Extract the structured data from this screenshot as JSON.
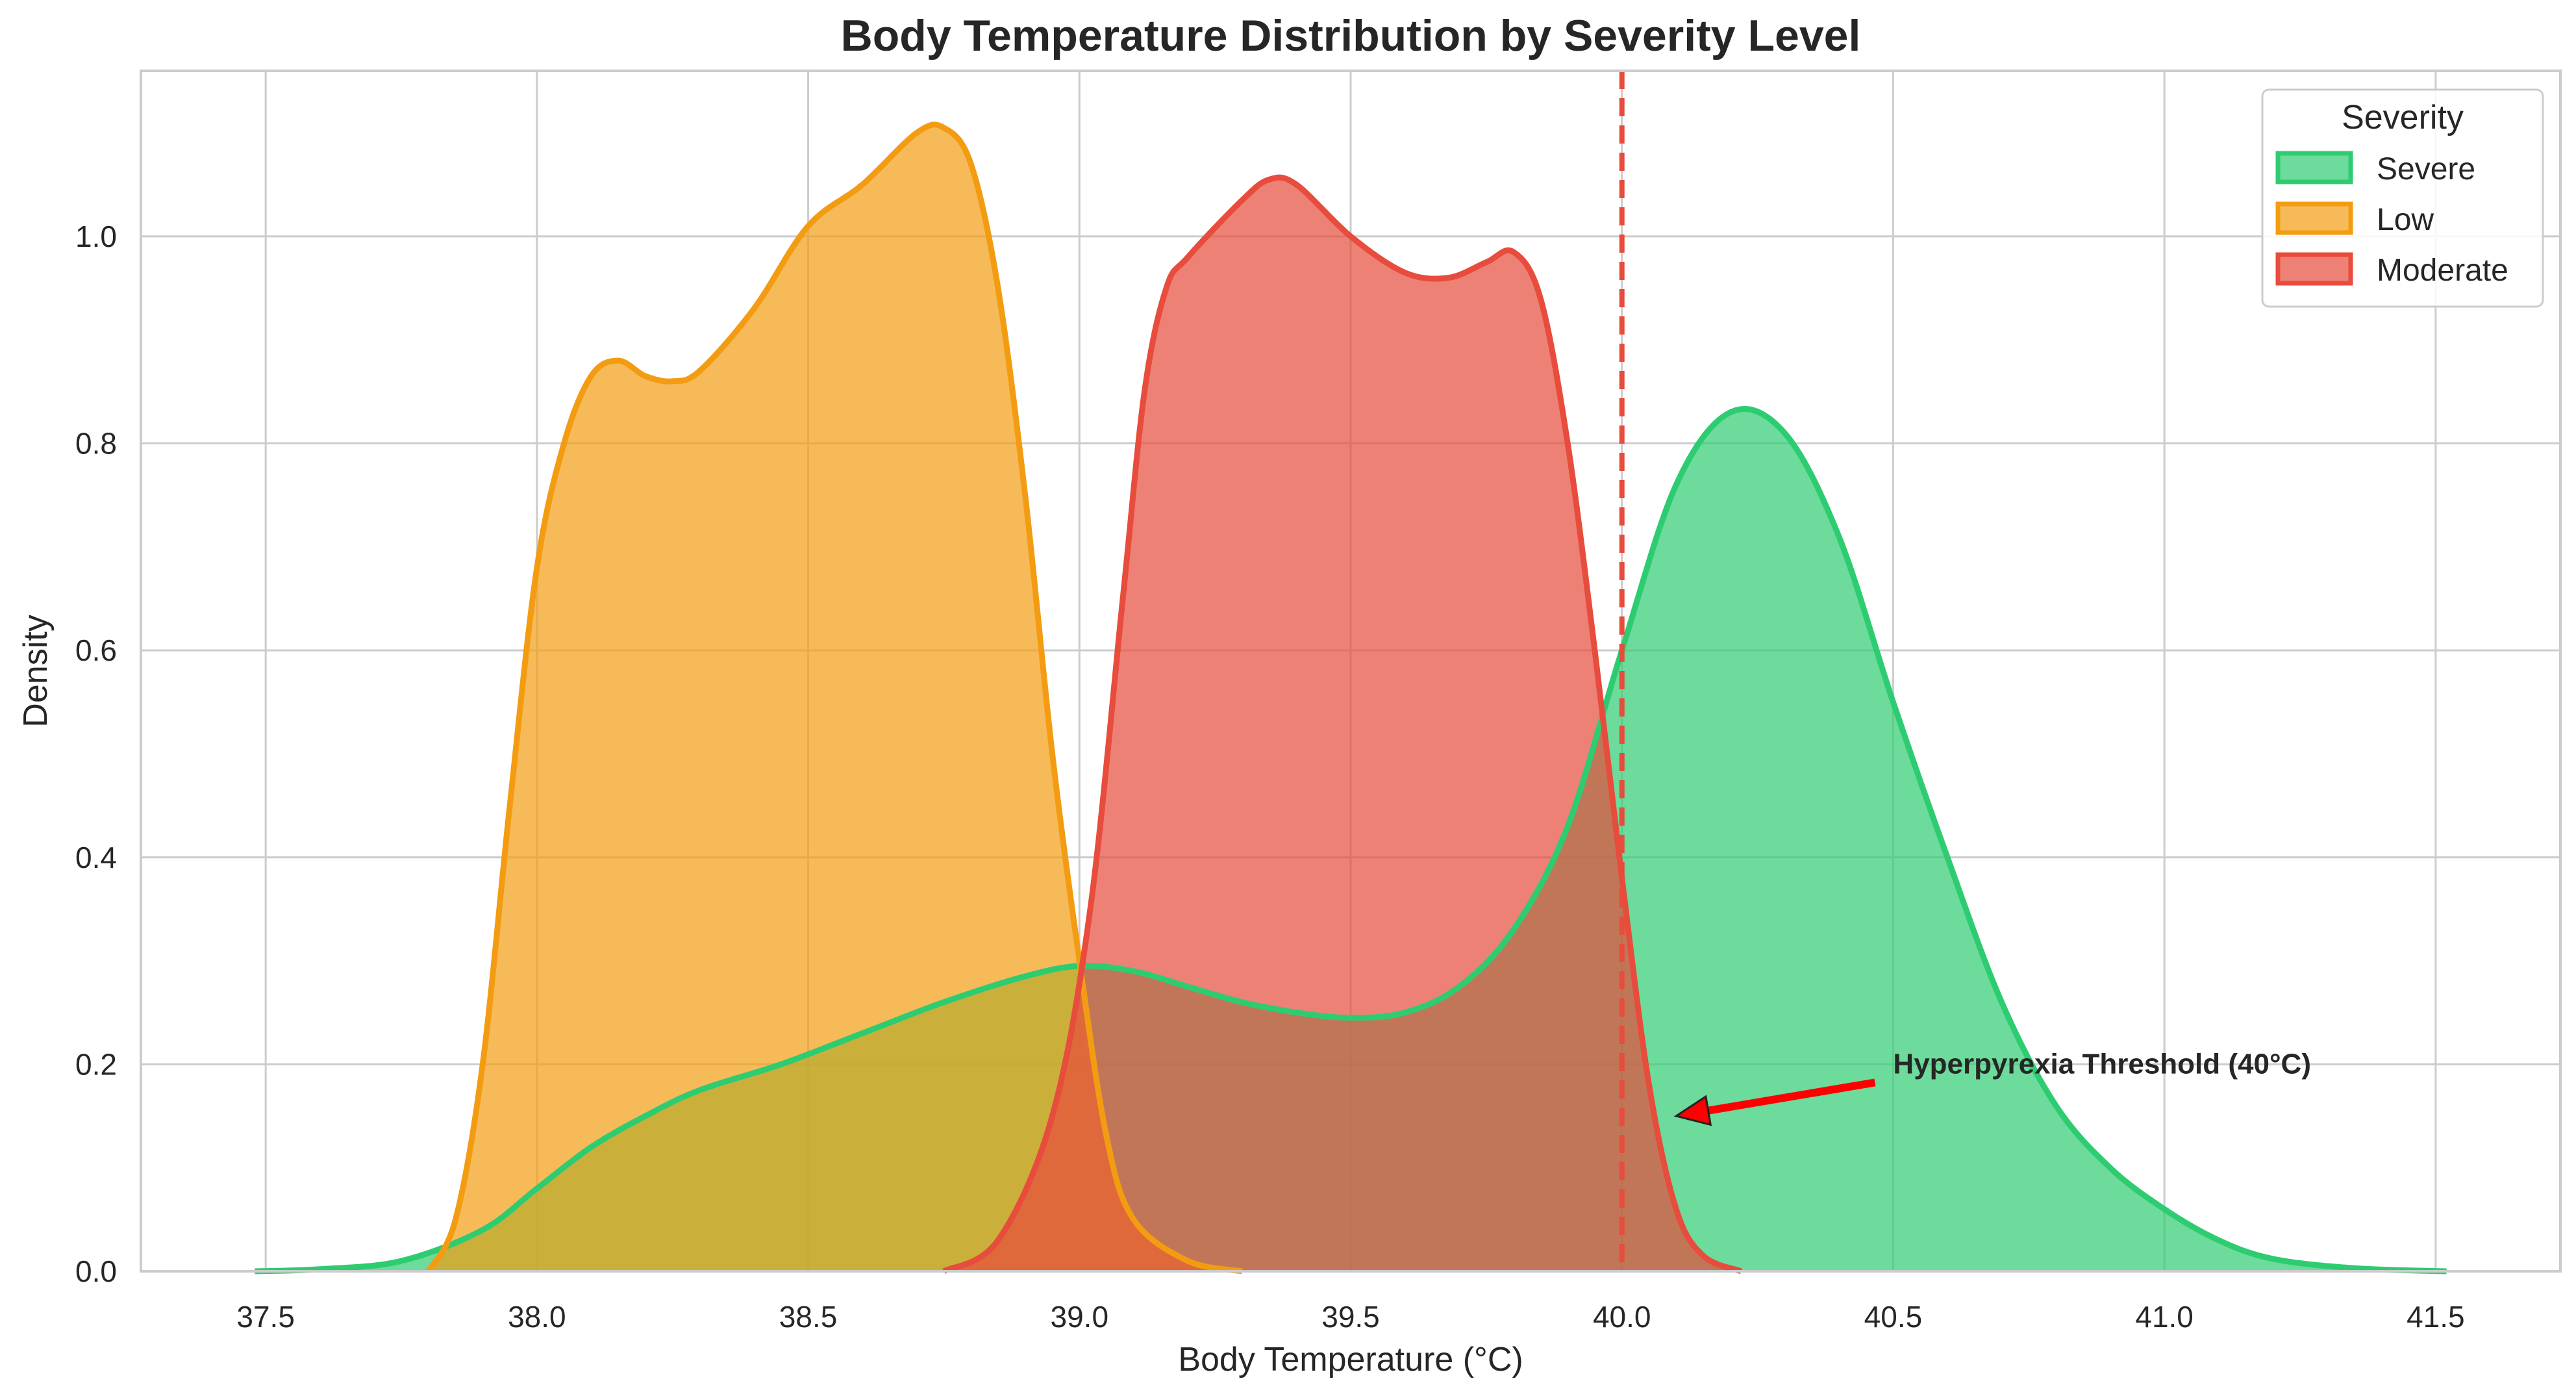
{
  "chart_data": {
    "type": "area",
    "title": "Body Temperature Distribution by Severity Level",
    "xlabel": "Body Temperature (°C)",
    "ylabel": "Density",
    "xlim": [
      37.27,
      41.73
    ],
    "ylim": [
      0,
      1.16
    ],
    "xticks": [
      37.5,
      38.0,
      38.5,
      39.0,
      39.5,
      40.0,
      40.5,
      41.0,
      41.5
    ],
    "xtick_labels": [
      "37.5",
      "38.0",
      "38.5",
      "39.0",
      "39.5",
      "40.0",
      "40.5",
      "41.0",
      "41.5"
    ],
    "yticks": [
      0.0,
      0.2,
      0.4,
      0.6,
      0.8,
      1.0
    ],
    "ytick_labels": [
      "0.0",
      "0.2",
      "0.4",
      "0.6",
      "0.8",
      "1.0"
    ],
    "grid": true,
    "legend": {
      "title": "Severity",
      "placement": "top-right"
    },
    "series": [
      {
        "name": "Severe",
        "color": "#2ecc71",
        "points": [
          [
            37.48,
            0.0
          ],
          [
            37.6,
            0.002
          ],
          [
            37.75,
            0.01
          ],
          [
            37.9,
            0.04
          ],
          [
            38.0,
            0.08
          ],
          [
            38.1,
            0.12
          ],
          [
            38.2,
            0.15
          ],
          [
            38.3,
            0.175
          ],
          [
            38.45,
            0.2
          ],
          [
            38.6,
            0.23
          ],
          [
            38.75,
            0.26
          ],
          [
            38.9,
            0.285
          ],
          [
            39.0,
            0.295
          ],
          [
            39.1,
            0.29
          ],
          [
            39.2,
            0.275
          ],
          [
            39.3,
            0.26
          ],
          [
            39.4,
            0.25
          ],
          [
            39.5,
            0.245
          ],
          [
            39.6,
            0.25
          ],
          [
            39.7,
            0.275
          ],
          [
            39.8,
            0.33
          ],
          [
            39.9,
            0.43
          ],
          [
            40.0,
            0.6
          ],
          [
            40.1,
            0.76
          ],
          [
            40.2,
            0.83
          ],
          [
            40.3,
            0.81
          ],
          [
            40.4,
            0.71
          ],
          [
            40.5,
            0.55
          ],
          [
            40.6,
            0.4
          ],
          [
            40.7,
            0.26
          ],
          [
            40.8,
            0.16
          ],
          [
            40.9,
            0.1
          ],
          [
            41.0,
            0.06
          ],
          [
            41.1,
            0.03
          ],
          [
            41.2,
            0.012
          ],
          [
            41.35,
            0.003
          ],
          [
            41.52,
            0.0
          ]
        ]
      },
      {
        "name": "Low",
        "color": "#f39c12",
        "points": [
          [
            37.8,
            0.0
          ],
          [
            37.85,
            0.05
          ],
          [
            37.9,
            0.2
          ],
          [
            37.95,
            0.45
          ],
          [
            38.0,
            0.68
          ],
          [
            38.05,
            0.8
          ],
          [
            38.1,
            0.865
          ],
          [
            38.15,
            0.88
          ],
          [
            38.2,
            0.865
          ],
          [
            38.25,
            0.86
          ],
          [
            38.3,
            0.87
          ],
          [
            38.4,
            0.93
          ],
          [
            38.5,
            1.01
          ],
          [
            38.6,
            1.05
          ],
          [
            38.7,
            1.1
          ],
          [
            38.75,
            1.105
          ],
          [
            38.8,
            1.07
          ],
          [
            38.85,
            0.95
          ],
          [
            38.9,
            0.75
          ],
          [
            38.95,
            0.5
          ],
          [
            39.0,
            0.3
          ],
          [
            39.05,
            0.13
          ],
          [
            39.1,
            0.05
          ],
          [
            39.2,
            0.01
          ],
          [
            39.3,
            0.0
          ]
        ]
      },
      {
        "name": "Moderate",
        "color": "#e74c3c",
        "points": [
          [
            38.75,
            0.0
          ],
          [
            38.85,
            0.03
          ],
          [
            38.95,
            0.15
          ],
          [
            39.02,
            0.35
          ],
          [
            39.08,
            0.65
          ],
          [
            39.12,
            0.85
          ],
          [
            39.16,
            0.95
          ],
          [
            39.2,
            0.98
          ],
          [
            39.3,
            1.035
          ],
          [
            39.35,
            1.055
          ],
          [
            39.4,
            1.05
          ],
          [
            39.5,
            1.0
          ],
          [
            39.6,
            0.965
          ],
          [
            39.68,
            0.96
          ],
          [
            39.75,
            0.975
          ],
          [
            39.8,
            0.985
          ],
          [
            39.85,
            0.94
          ],
          [
            39.9,
            0.8
          ],
          [
            39.95,
            0.6
          ],
          [
            40.0,
            0.38
          ],
          [
            40.05,
            0.18
          ],
          [
            40.1,
            0.06
          ],
          [
            40.15,
            0.015
          ],
          [
            40.22,
            0.0
          ]
        ]
      }
    ],
    "threshold": {
      "x": 40.0,
      "color": "#e74c3c",
      "style": "dashed"
    },
    "annotation": {
      "text": "Hyperpyrexia Threshold (40°C)",
      "text_x": 40.5,
      "text_y": 0.2,
      "arrow_x": 40.1,
      "arrow_y": 0.15,
      "arrow_color": "#ff0000"
    }
  }
}
